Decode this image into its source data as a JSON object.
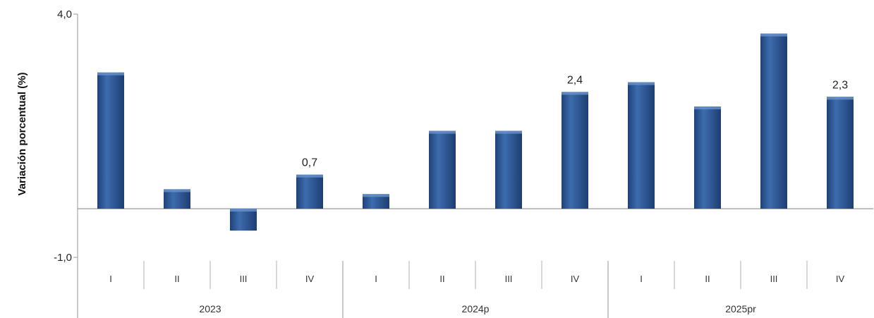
{
  "chart_data": {
    "type": "bar",
    "ylabel": "Variación porcentual (%)",
    "ylim": [
      -1.0,
      4.0
    ],
    "yticks": [
      "4,0",
      "-1,0"
    ],
    "grid": false,
    "groups": [
      {
        "label": "2023",
        "quarters": [
          "I",
          "II",
          "III",
          "IV"
        ]
      },
      {
        "label": "2024p",
        "quarters": [
          "I",
          "II",
          "III",
          "IV"
        ]
      },
      {
        "label": "2025pr",
        "quarters": [
          "I",
          "II",
          "III",
          "IV"
        ]
      }
    ],
    "values": [
      2.8,
      0.4,
      -0.45,
      0.7,
      0.3,
      1.6,
      1.6,
      2.4,
      2.6,
      2.1,
      3.6,
      2.3
    ],
    "data_labels": [
      "",
      "",
      "",
      "0,7",
      "",
      "",
      "",
      "2,4",
      "",
      "",
      "",
      "2,3"
    ],
    "bar_color": "#2e5b9a"
  }
}
